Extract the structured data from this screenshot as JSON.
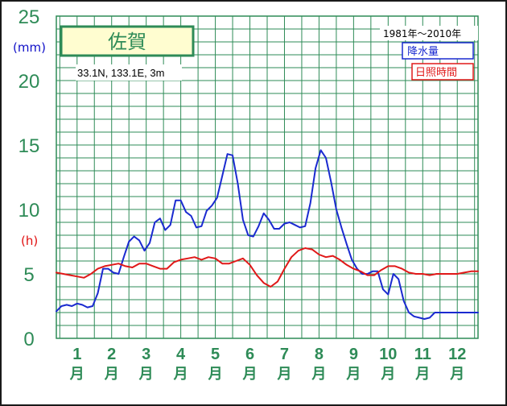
{
  "chart_data": {
    "type": "line",
    "title": "佐賀",
    "subtitle": "33.1N,  133.1E,  3m",
    "period": "1981年〜2010年",
    "y_units": [
      "(mm)",
      "(h)"
    ],
    "ylim": [
      0,
      25
    ],
    "y_ticks": [
      "0",
      "5",
      "10",
      "15",
      "20",
      "25"
    ],
    "xlim": [
      0.4,
      12.6
    ],
    "x_ticks": [
      "1",
      "2",
      "3",
      "4",
      "5",
      "6",
      "7",
      "8",
      "9",
      "10",
      "11",
      "12"
    ],
    "x_tick_unit": "月",
    "grid": true,
    "legend_position": "top-right",
    "series": [
      {
        "name": "降水量",
        "color": "#1a2ad0",
        "x": [
          0.4,
          0.55,
          0.7,
          0.85,
          1.0,
          1.15,
          1.3,
          1.45,
          1.6,
          1.75,
          1.9,
          2.05,
          2.2,
          2.35,
          2.5,
          2.65,
          2.8,
          2.95,
          3.1,
          3.25,
          3.4,
          3.55,
          3.7,
          3.85,
          4.0,
          4.15,
          4.3,
          4.45,
          4.6,
          4.75,
          4.9,
          5.05,
          5.2,
          5.35,
          5.5,
          5.65,
          5.8,
          5.95,
          6.1,
          6.25,
          6.4,
          6.55,
          6.7,
          6.85,
          7.0,
          7.15,
          7.3,
          7.45,
          7.6,
          7.75,
          7.9,
          8.05,
          8.2,
          8.35,
          8.5,
          8.65,
          8.8,
          8.95,
          9.1,
          9.25,
          9.4,
          9.55,
          9.7,
          9.85,
          10.0,
          10.15,
          10.3,
          10.45,
          10.6,
          10.75,
          10.9,
          11.05,
          11.2,
          11.35,
          11.5,
          11.65,
          11.8,
          11.95,
          12.1,
          12.25,
          12.4,
          12.6
        ],
        "values": [
          2.1,
          2.5,
          2.6,
          2.5,
          2.7,
          2.6,
          2.4,
          2.5,
          3.5,
          5.4,
          5.4,
          5.1,
          5.0,
          6.3,
          7.5,
          7.9,
          7.6,
          6.8,
          7.4,
          9.0,
          9.3,
          8.4,
          8.8,
          10.7,
          10.7,
          9.8,
          9.5,
          8.6,
          8.7,
          9.9,
          10.3,
          10.9,
          12.6,
          14.3,
          14.2,
          12.0,
          9.2,
          8.0,
          7.9,
          8.7,
          9.7,
          9.2,
          8.5,
          8.5,
          8.9,
          9.0,
          8.8,
          8.6,
          8.7,
          10.5,
          13.2,
          14.6,
          14.0,
          12.1,
          10.0,
          8.6,
          7.3,
          6.1,
          5.4,
          5.0,
          5.0,
          5.2,
          5.2,
          3.8,
          3.4,
          5.0,
          4.6,
          2.9,
          2.0,
          1.7,
          1.6,
          1.5,
          1.6,
          2.0,
          2.0,
          2.0,
          2.0,
          2.0,
          2.0,
          2.0,
          2.0,
          2.0
        ]
      },
      {
        "name": "日照時間",
        "color": "#e01818",
        "x": [
          0.4,
          0.6,
          0.8,
          1.0,
          1.2,
          1.4,
          1.6,
          1.8,
          2.0,
          2.2,
          2.4,
          2.6,
          2.8,
          3.0,
          3.2,
          3.4,
          3.6,
          3.8,
          4.0,
          4.2,
          4.4,
          4.6,
          4.8,
          5.0,
          5.2,
          5.4,
          5.6,
          5.8,
          6.0,
          6.2,
          6.4,
          6.6,
          6.8,
          7.0,
          7.2,
          7.4,
          7.6,
          7.8,
          8.0,
          8.2,
          8.4,
          8.6,
          8.8,
          9.0,
          9.2,
          9.4,
          9.6,
          9.8,
          10.0,
          10.2,
          10.4,
          10.6,
          10.8,
          11.0,
          11.2,
          11.4,
          11.6,
          11.8,
          12.0,
          12.2,
          12.4,
          12.6
        ],
        "values": [
          5.1,
          5.0,
          4.9,
          4.8,
          4.7,
          5.0,
          5.4,
          5.6,
          5.7,
          5.8,
          5.6,
          5.5,
          5.8,
          5.8,
          5.6,
          5.4,
          5.4,
          5.9,
          6.1,
          6.2,
          6.3,
          6.1,
          6.3,
          6.2,
          5.8,
          5.8,
          6.0,
          6.2,
          5.7,
          4.9,
          4.3,
          4.0,
          4.4,
          5.4,
          6.3,
          6.8,
          7.0,
          6.9,
          6.5,
          6.3,
          6.4,
          6.1,
          5.7,
          5.4,
          5.2,
          4.9,
          4.9,
          5.3,
          5.6,
          5.6,
          5.4,
          5.1,
          5.0,
          5.0,
          4.9,
          5.0,
          5.0,
          5.0,
          5.0,
          5.1,
          5.2,
          5.2
        ]
      }
    ]
  }
}
